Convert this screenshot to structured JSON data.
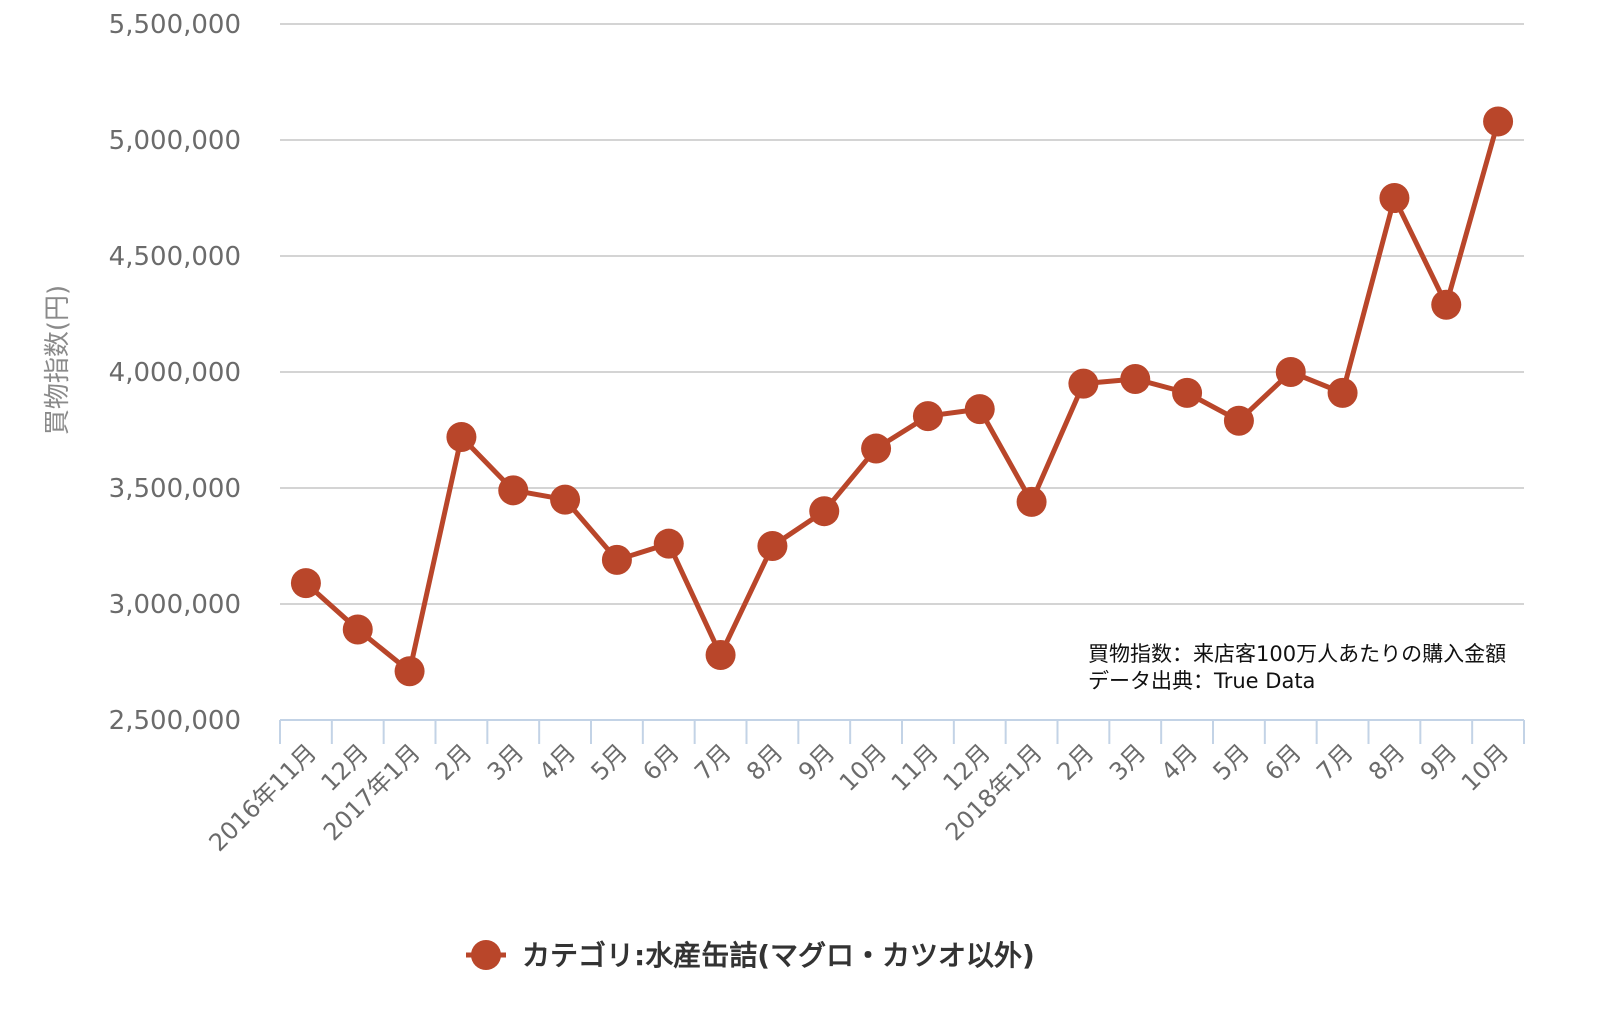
{
  "colors": {
    "series": "#b9462a",
    "grid": "#d4d4d4",
    "axis": "#c3d3e6"
  },
  "chart_data": {
    "type": "line",
    "ylabel": "買物指数(円)",
    "xlabel": "",
    "ylim": [
      2500000,
      5500000
    ],
    "yticks": [
      2500000,
      3000000,
      3500000,
      4000000,
      4500000,
      5000000,
      5500000
    ],
    "ytick_labels": [
      "2,500,000",
      "3,000,000",
      "3,500,000",
      "4,000,000",
      "4,500,000",
      "5,000,000",
      "5,500,000"
    ],
    "categories": [
      "2016年11月",
      "12月",
      "2017年1月",
      "2月",
      "3月",
      "4月",
      "5月",
      "6月",
      "7月",
      "8月",
      "9月",
      "10月",
      "11月",
      "12月",
      "2018年1月",
      "2月",
      "3月",
      "4月",
      "5月",
      "6月",
      "7月",
      "8月",
      "9月",
      "10月"
    ],
    "series": [
      {
        "name": "カテゴリ:水産缶詰(マグロ・カツオ以外)",
        "values": [
          3090000,
          2890000,
          2710000,
          3720000,
          3490000,
          3450000,
          3190000,
          3260000,
          2780000,
          3250000,
          3400000,
          3670000,
          3810000,
          3840000,
          3440000,
          3950000,
          3970000,
          3910000,
          3790000,
          4000000,
          3910000,
          4750000,
          4290000,
          5080000
        ]
      }
    ],
    "grid": true,
    "legend_position": "bottom-center",
    "annotations": [
      "買物指数：来店客100万人あたりの購入金額",
      "データ出典：True Data"
    ]
  }
}
